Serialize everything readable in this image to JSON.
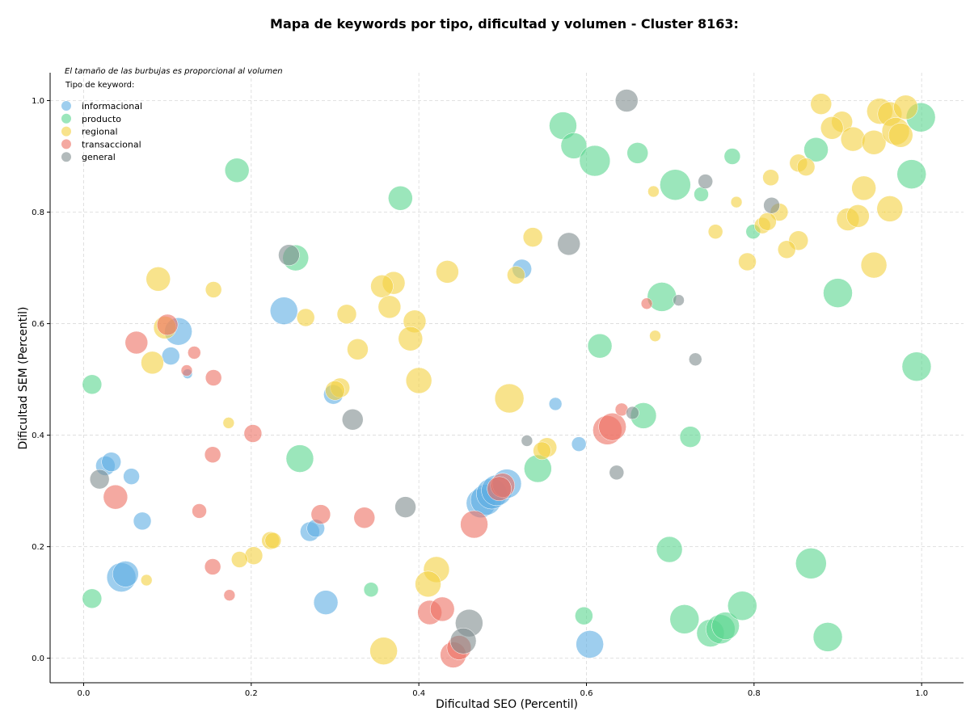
{
  "chart_data": {
    "type": "scatter",
    "title": "Mapa de keywords por tipo, dificultad y volumen - Cluster 8163:",
    "xlabel": "Dificultad SEO (Percentil)",
    "ylabel": "Dificultad SEM (Percentil)",
    "xlim": [
      -0.04,
      1.05
    ],
    "ylim": [
      -0.044,
      1.05
    ],
    "xticks": [
      "0.0",
      "0.2",
      "0.4",
      "0.6",
      "0.8",
      "1.0"
    ],
    "yticks": [
      "0.0",
      "0.2",
      "0.4",
      "0.6",
      "0.8",
      "1.0"
    ],
    "grid": true,
    "note": "El tamaño de las burbujas es proporcional al volumen",
    "legend_title": "Tipo de keyword:",
    "legend_position": "top-left",
    "series": [
      {
        "name": "informacional",
        "color": "#5DADE2",
        "points": [
          [
            0.523,
            0.698,
            12
          ],
          [
            0.113,
            0.586,
            17
          ],
          [
            0.104,
            0.542,
            11
          ],
          [
            0.124,
            0.51,
            6
          ],
          [
            0.239,
            0.623,
            17
          ],
          [
            0.298,
            0.473,
            12
          ],
          [
            0.026,
            0.345,
            12
          ],
          [
            0.033,
            0.352,
            12
          ],
          [
            0.057,
            0.326,
            10
          ],
          [
            0.07,
            0.246,
            11
          ],
          [
            0.045,
            0.145,
            18
          ],
          [
            0.05,
            0.151,
            16
          ],
          [
            0.27,
            0.227,
            12
          ],
          [
            0.277,
            0.233,
            11
          ],
          [
            0.289,
            0.1,
            15
          ],
          [
            0.474,
            0.278,
            18
          ],
          [
            0.48,
            0.284,
            19
          ],
          [
            0.487,
            0.295,
            19
          ],
          [
            0.493,
            0.301,
            19
          ],
          [
            0.505,
            0.313,
            18
          ],
          [
            0.563,
            0.456,
            8
          ],
          [
            0.591,
            0.384,
            9
          ],
          [
            0.604,
            0.025,
            17
          ]
        ]
      },
      {
        "name": "producto",
        "color": "#58D68D",
        "points": [
          [
            0.572,
            0.955,
            17
          ],
          [
            0.585,
            0.919,
            16
          ],
          [
            0.61,
            0.892,
            19
          ],
          [
            0.661,
            0.906,
            13
          ],
          [
            0.706,
            0.849,
            19
          ],
          [
            0.737,
            0.832,
            9
          ],
          [
            0.774,
            0.9,
            10
          ],
          [
            0.799,
            0.765,
            9
          ],
          [
            0.874,
            0.912,
            15
          ],
          [
            0.999,
            0.97,
            18
          ],
          [
            0.988,
            0.868,
            18
          ],
          [
            0.9,
            0.655,
            18
          ],
          [
            0.69,
            0.648,
            18
          ],
          [
            0.616,
            0.56,
            15
          ],
          [
            0.668,
            0.435,
            16
          ],
          [
            0.724,
            0.397,
            13
          ],
          [
            0.542,
            0.34,
            17
          ],
          [
            0.994,
            0.523,
            18
          ],
          [
            0.868,
            0.17,
            19
          ],
          [
            0.699,
            0.195,
            16
          ],
          [
            0.717,
            0.07,
            18
          ],
          [
            0.748,
            0.045,
            17
          ],
          [
            0.76,
            0.052,
            18
          ],
          [
            0.766,
            0.058,
            17
          ],
          [
            0.786,
            0.094,
            18
          ],
          [
            0.888,
            0.038,
            18
          ],
          [
            0.597,
            0.076,
            11
          ],
          [
            0.343,
            0.123,
            9
          ],
          [
            0.183,
            0.875,
            15
          ],
          [
            0.378,
            0.825,
            15
          ],
          [
            0.253,
            0.718,
            16
          ],
          [
            0.258,
            0.358,
            17
          ],
          [
            0.01,
            0.491,
            12
          ],
          [
            0.01,
            0.107,
            12
          ]
        ]
      },
      {
        "name": "regional",
        "color": "#F4D03F",
        "points": [
          [
            0.88,
            0.994,
            13
          ],
          [
            0.905,
            0.962,
            13
          ],
          [
            0.893,
            0.951,
            14
          ],
          [
            0.918,
            0.931,
            15
          ],
          [
            0.943,
            0.925,
            15
          ],
          [
            0.95,
            0.981,
            16
          ],
          [
            0.962,
            0.976,
            15
          ],
          [
            0.969,
            0.945,
            17
          ],
          [
            0.981,
            0.988,
            15
          ],
          [
            0.975,
            0.938,
            15
          ],
          [
            0.956,
            0.8,
            1
          ],
          [
            0.962,
            0.806,
            16
          ],
          [
            0.931,
            0.843,
            15
          ],
          [
            0.912,
            0.787,
            14
          ],
          [
            0.924,
            0.793,
            14
          ],
          [
            0.943,
            0.705,
            16
          ],
          [
            0.853,
            0.888,
            11
          ],
          [
            0.862,
            0.881,
            11
          ],
          [
            0.82,
            0.862,
            10
          ],
          [
            0.779,
            0.818,
            7
          ],
          [
            0.68,
            0.837,
            7
          ],
          [
            0.83,
            0.8,
            11
          ],
          [
            0.81,
            0.776,
            10
          ],
          [
            0.816,
            0.783,
            11
          ],
          [
            0.754,
            0.765,
            9
          ],
          [
            0.853,
            0.749,
            12
          ],
          [
            0.839,
            0.733,
            11
          ],
          [
            0.792,
            0.711,
            11
          ],
          [
            0.536,
            0.755,
            12
          ],
          [
            0.516,
            0.687,
            11
          ],
          [
            0.434,
            0.693,
            14
          ],
          [
            0.37,
            0.673,
            14
          ],
          [
            0.356,
            0.667,
            14
          ],
          [
            0.365,
            0.63,
            14
          ],
          [
            0.395,
            0.604,
            14
          ],
          [
            0.39,
            0.573,
            15
          ],
          [
            0.314,
            0.617,
            12
          ],
          [
            0.265,
            0.611,
            11
          ],
          [
            0.327,
            0.554,
            13
          ],
          [
            0.4,
            0.498,
            16
          ],
          [
            0.508,
            0.466,
            18
          ],
          [
            0.306,
            0.485,
            12
          ],
          [
            0.3,
            0.48,
            12
          ],
          [
            0.089,
            0.68,
            15
          ],
          [
            0.155,
            0.661,
            10
          ],
          [
            0.097,
            0.593,
            14
          ],
          [
            0.082,
            0.53,
            14
          ],
          [
            0.173,
            0.422,
            7
          ],
          [
            0.682,
            0.578,
            7
          ],
          [
            0.553,
            0.378,
            12
          ],
          [
            0.547,
            0.372,
            11
          ],
          [
            0.223,
            0.211,
            11
          ],
          [
            0.226,
            0.211,
            10
          ],
          [
            0.203,
            0.184,
            11
          ],
          [
            0.186,
            0.177,
            10
          ],
          [
            0.421,
            0.159,
            16
          ],
          [
            0.411,
            0.133,
            16
          ],
          [
            0.075,
            0.14,
            7
          ],
          [
            0.358,
            0.013,
            17
          ]
        ]
      },
      {
        "name": "transaccional",
        "color": "#EC7063",
        "points": [
          [
            0.063,
            0.566,
            14
          ],
          [
            0.1,
            0.598,
            13
          ],
          [
            0.132,
            0.548,
            8
          ],
          [
            0.123,
            0.516,
            7
          ],
          [
            0.155,
            0.503,
            10
          ],
          [
            0.154,
            0.365,
            10
          ],
          [
            0.202,
            0.403,
            11
          ],
          [
            0.038,
            0.289,
            15
          ],
          [
            0.138,
            0.264,
            9
          ],
          [
            0.283,
            0.258,
            12
          ],
          [
            0.335,
            0.252,
            13
          ],
          [
            0.154,
            0.164,
            10
          ],
          [
            0.174,
            0.113,
            7
          ],
          [
            0.466,
            0.24,
            17
          ],
          [
            0.5,
            0.31,
            15
          ],
          [
            0.496,
            0.304,
            15
          ],
          [
            0.413,
            0.082,
            15
          ],
          [
            0.428,
            0.088,
            15
          ],
          [
            0.441,
            0.006,
            16
          ],
          [
            0.448,
            0.019,
            15
          ],
          [
            0.625,
            0.409,
            18
          ],
          [
            0.631,
            0.415,
            17
          ],
          [
            0.642,
            0.446,
            8
          ],
          [
            0.672,
            0.636,
            7
          ]
        ]
      },
      {
        "name": "general",
        "color": "#7F8C8D",
        "points": [
          [
            0.648,
            1.0,
            14
          ],
          [
            0.742,
            0.855,
            9
          ],
          [
            0.821,
            0.812,
            10
          ],
          [
            0.579,
            0.743,
            14
          ],
          [
            0.245,
            0.723,
            13
          ],
          [
            0.71,
            0.642,
            7
          ],
          [
            0.73,
            0.536,
            8
          ],
          [
            0.655,
            0.44,
            8
          ],
          [
            0.529,
            0.39,
            7
          ],
          [
            0.636,
            0.333,
            9
          ],
          [
            0.321,
            0.428,
            13
          ],
          [
            0.384,
            0.271,
            13
          ],
          [
            0.46,
            0.063,
            17
          ],
          [
            0.453,
            0.031,
            16
          ],
          [
            0.019,
            0.321,
            12
          ]
        ]
      }
    ]
  }
}
